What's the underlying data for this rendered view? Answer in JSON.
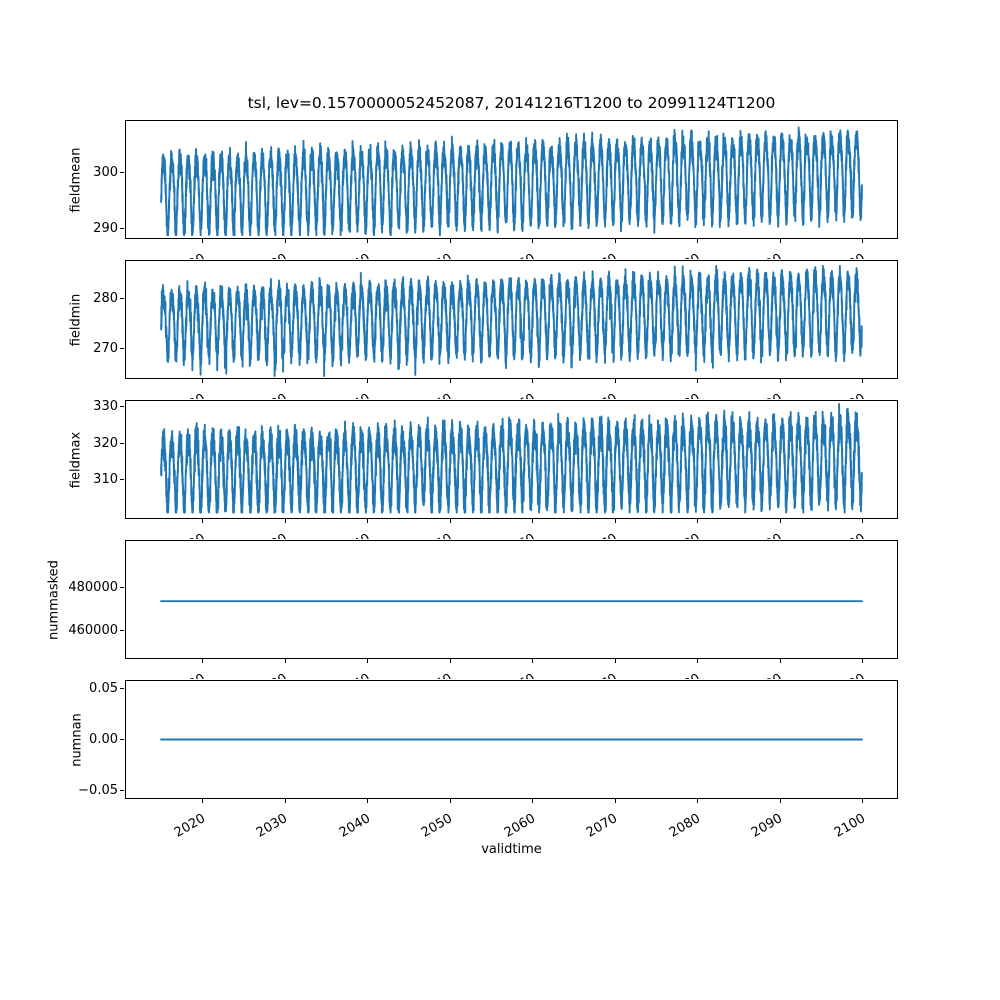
{
  "figure": {
    "title": "tsl, lev=0.1570000052452087, 20141216T1200 to 20991124T1200",
    "xlabel": "validtime",
    "background": "#ffffff",
    "axes_edge_color": "#000000",
    "text_color": "#000000",
    "line_color": "#1f77b4",
    "x": {
      "start": 2014.96,
      "end": 2099.9,
      "lim": [
        2010.7,
        2104.16
      ],
      "ticks": [
        2020,
        2030,
        2040,
        2050,
        2060,
        2070,
        2080,
        2090,
        2100
      ],
      "tick_labels": [
        "2020",
        "2030",
        "2040",
        "2050",
        "2060",
        "2070",
        "2080",
        "2090",
        "2100"
      ],
      "tick_rotation_deg": 30
    }
  },
  "chart_data": [
    {
      "type": "line",
      "name": "fieldmean",
      "ylabel": "fieldmean",
      "yticks": [
        290,
        300
      ],
      "ytick_labels": [
        "290",
        "300"
      ],
      "ylim": [
        288.2,
        309.3
      ],
      "approx_range_start": [
        289,
        304
      ],
      "approx_range_end": [
        293,
        308
      ],
      "series_model": {
        "kind": "noisy_seasonal",
        "seed": 11,
        "center_start": 296.6,
        "center_end": 300.5,
        "amp_start": 6.3,
        "amp_end": 6.6,
        "harmonic2": 1.1,
        "noise_sd": 1.0,
        "clip": [
          288.7,
          308.6
        ],
        "spike_prob": 0,
        "spike_max": 0
      }
    },
    {
      "type": "line",
      "name": "fieldmin",
      "ylabel": "fieldmin",
      "yticks": [
        270,
        280
      ],
      "ytick_labels": [
        "270",
        "280"
      ],
      "ylim": [
        264.0,
        287.6
      ],
      "approx_range_start": [
        266,
        282
      ],
      "approx_range_end": [
        270,
        286
      ],
      "series_model": {
        "kind": "noisy_seasonal",
        "seed": 22,
        "center_start": 275.4,
        "center_end": 277.9,
        "amp_start": 6.1,
        "amp_end": 7.4,
        "harmonic2": 1.0,
        "noise_sd": 1.1,
        "clip": [
          264.4,
          286.6
        ],
        "spike_prob": 0.012,
        "spike_max": 5
      }
    },
    {
      "type": "line",
      "name": "fieldmax",
      "ylabel": "fieldmax",
      "yticks": [
        310,
        320,
        330
      ],
      "ytick_labels": [
        "310",
        "320",
        "330"
      ],
      "ylim": [
        299.7,
        331.4
      ],
      "approx_range_start": [
        302,
        323
      ],
      "approx_range_end": [
        304,
        330
      ],
      "series_model": {
        "kind": "noisy_seasonal",
        "seed": 33,
        "center_start": 312.6,
        "center_end": 316.4,
        "amp_start": 9.0,
        "amp_end": 10.3,
        "harmonic2": 1.8,
        "noise_sd": 1.9,
        "clip": [
          301.2,
          330.6
        ],
        "spike_prob": 0,
        "spike_max": 0
      }
    },
    {
      "type": "line",
      "name": "nummasked",
      "ylabel": "nummasked",
      "yticks": [
        460000,
        480000
      ],
      "ytick_labels": [
        "460000",
        "480000"
      ],
      "ylim": [
        446800,
        502000
      ],
      "series_model": {
        "kind": "constant",
        "value": 473600
      }
    },
    {
      "type": "line",
      "name": "numnan",
      "ylabel": "numnan",
      "yticks": [
        -0.05,
        0.0,
        0.05
      ],
      "ytick_labels": [
        "−0.05",
        "0.00",
        "0.05"
      ],
      "ylim": [
        -0.0579,
        0.0579
      ],
      "series_model": {
        "kind": "constant",
        "value": 0.0
      }
    }
  ]
}
